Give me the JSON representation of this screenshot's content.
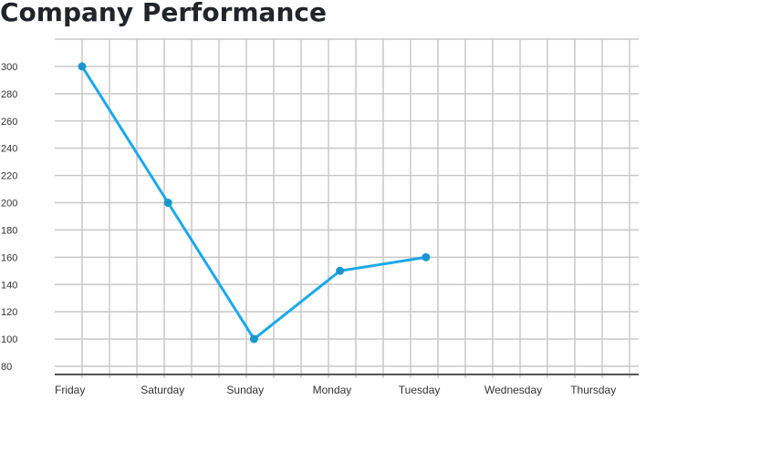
{
  "chart_data": {
    "type": "line",
    "title": "Company Performance",
    "xlabel": "",
    "ylabel": "",
    "categories": [
      "Friday",
      "Saturday",
      "Sunday",
      "Monday",
      "Tuesday",
      "Wednesday",
      "Thursday"
    ],
    "series": [
      {
        "values": [
          300,
          200,
          100,
          150,
          160,
          null,
          null
        ],
        "color": "#1ca8e8",
        "marker_color": "#1a96cf"
      }
    ],
    "yticks": [
      80,
      100,
      120,
      140,
      160,
      180,
      200,
      220,
      240,
      260,
      280,
      300
    ],
    "ylim": [
      74,
      320
    ],
    "grid": true,
    "legend": "none",
    "colors": {
      "grid": "#c8c8c8",
      "axis": "#555555"
    }
  }
}
